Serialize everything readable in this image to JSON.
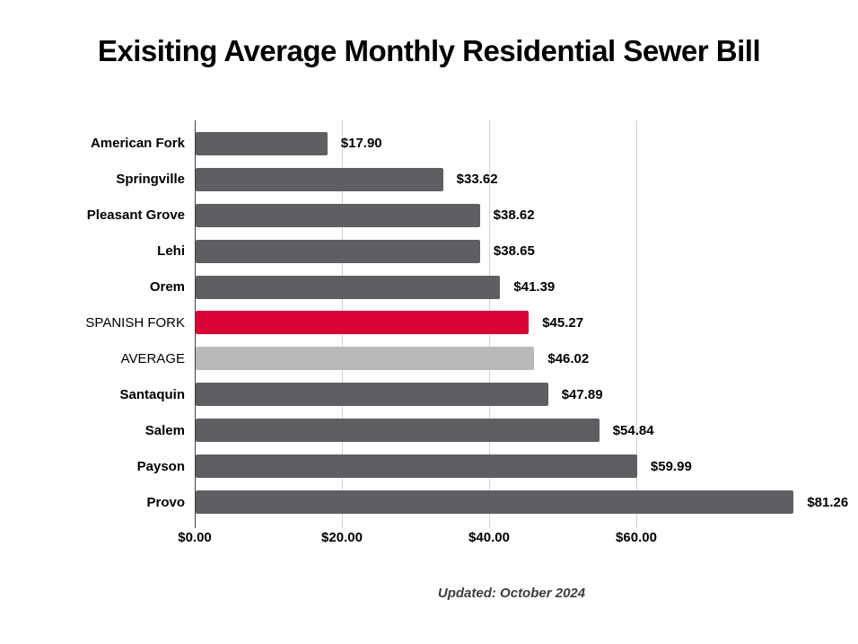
{
  "header": {
    "title": "Exisiting Average Monthly Residential Sewer Bill"
  },
  "footer": {
    "updated_label": "Updated: October 2024"
  },
  "chart_data": {
    "type": "bar",
    "orientation": "horizontal",
    "title": "Exisiting Average Monthly Residential Sewer Bill",
    "categories": [
      "American Fork",
      "Springville",
      "Pleasant Grove",
      "Lehi",
      "Orem",
      "SPANISH FORK",
      "AVERAGE",
      "Santaquin",
      "Salem",
      "Payson",
      "Provo"
    ],
    "values": [
      17.9,
      33.62,
      38.62,
      38.65,
      41.39,
      45.27,
      46.02,
      47.89,
      54.84,
      59.99,
      81.26
    ],
    "value_labels": [
      "$17.90",
      "$33.62",
      "$38.62",
      "$38.65",
      "$41.39",
      "$45.27",
      "$46.02",
      "$47.89",
      "$54.84",
      "$59.99",
      "$81.26"
    ],
    "bar_roles": [
      "default",
      "default",
      "default",
      "default",
      "default",
      "highlight",
      "average",
      "default",
      "default",
      "default",
      "default"
    ],
    "label_weights": [
      "bold",
      "bold",
      "bold",
      "bold",
      "bold",
      "normal",
      "normal",
      "bold",
      "bold",
      "bold",
      "bold"
    ],
    "colors": {
      "bar_default": "#5E5F62",
      "bar_highlight": "#D90336",
      "bar_average": "#B9B9B9",
      "gridline": "#D0D0D0",
      "axis": "#404040"
    },
    "xlabel": "",
    "ylabel": "",
    "x_ticks": [
      0,
      20,
      40,
      60
    ],
    "x_tick_labels": [
      "$0.00",
      "$20.00",
      "$40.00",
      "$60.00"
    ],
    "xlim": [
      0,
      90
    ],
    "grid": "vertical",
    "legend": "none",
    "annotation": "Updated: October 2024"
  }
}
